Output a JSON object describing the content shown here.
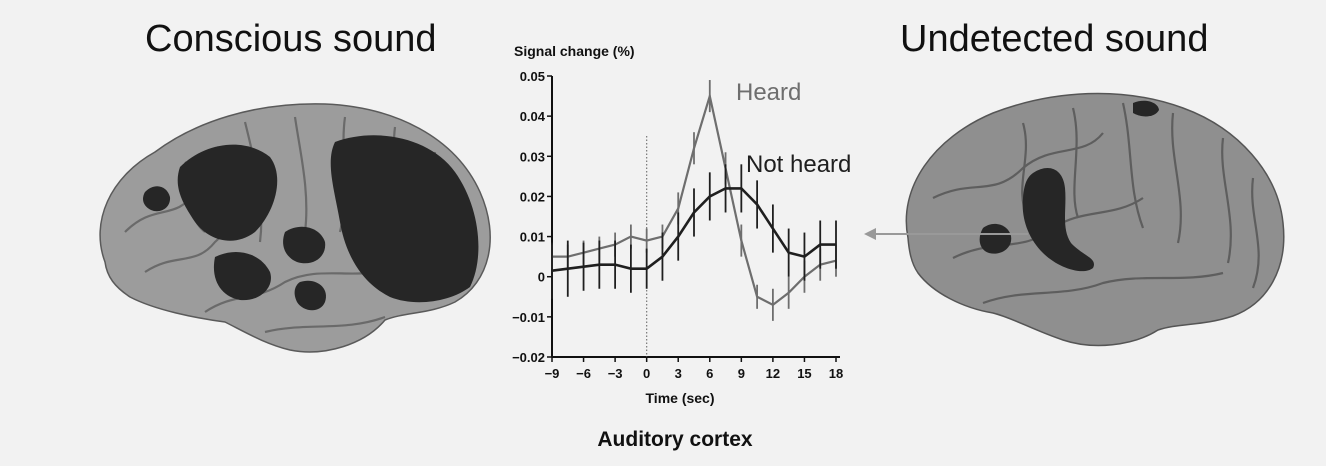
{
  "titles": {
    "left": "Conscious sound",
    "right": "Undetected sound"
  },
  "brains": {
    "left": {
      "view": "lateral-left-hemisphere",
      "activation": "widespread",
      "base_color": "#9c9c9c",
      "activation_color": "#262626"
    },
    "right": {
      "view": "lateral-right-hemisphere",
      "activation": "auditory-cortex-only",
      "base_color": "#8f8f8f",
      "activation_color": "#262626"
    }
  },
  "arrow": {
    "color": "#999999",
    "points_to": "auditory-cortex"
  },
  "chart_data": {
    "type": "line",
    "ylabel": "Signal change (%)",
    "xlabel": "Time (sec)",
    "caption": "Auditory cortex",
    "xlim": [
      -9,
      18
    ],
    "ylim": [
      -0.02,
      0.05
    ],
    "xticks": [
      -9,
      -6,
      -3,
      0,
      3,
      6,
      9,
      12,
      15,
      18
    ],
    "yticks": [
      -0.02,
      -0.01,
      0,
      0.01,
      0.02,
      0.03,
      0.04,
      0.05
    ],
    "ytick_labels": [
      "−0.02",
      "−0.01",
      "0",
      "0.01",
      "0.02",
      "0.03",
      "0.04",
      "0.05"
    ],
    "xtick_labels": [
      "−9",
      "−6",
      "−3",
      "0",
      "3",
      "6",
      "9",
      "12",
      "15",
      "18"
    ],
    "vline_x": 0,
    "series": [
      {
        "name": "Heard",
        "color": "#6e6e6e",
        "x": [
          -9,
          -7.5,
          -6,
          -4.5,
          -3,
          -1.5,
          0,
          1.5,
          3,
          4.5,
          6,
          7.5,
          9,
          10.5,
          12,
          13.5,
          15,
          16.5,
          18
        ],
        "y": [
          0.005,
          0.005,
          0.006,
          0.007,
          0.008,
          0.01,
          0.009,
          0.01,
          0.017,
          0.032,
          0.045,
          0.027,
          0.009,
          -0.005,
          -0.007,
          -0.004,
          0.0,
          0.003,
          0.004
        ],
        "err": [
          0.003,
          0.003,
          0.003,
          0.003,
          0.003,
          0.003,
          0.003,
          0.003,
          0.004,
          0.004,
          0.004,
          0.004,
          0.004,
          0.003,
          0.004,
          0.004,
          0.004,
          0.004,
          0.004
        ]
      },
      {
        "name": "Not heard",
        "color": "#1f1f1f",
        "x": [
          -9,
          -7.5,
          -6,
          -4.5,
          -3,
          -1.5,
          0,
          1.5,
          3,
          4.5,
          6,
          7.5,
          9,
          10.5,
          12,
          13.5,
          15,
          16.5,
          18
        ],
        "y": [
          0.0015,
          0.002,
          0.0025,
          0.003,
          0.003,
          0.002,
          0.002,
          0.005,
          0.01,
          0.016,
          0.02,
          0.022,
          0.022,
          0.018,
          0.012,
          0.006,
          0.005,
          0.008,
          0.008
        ],
        "err": [
          0.007,
          0.007,
          0.006,
          0.006,
          0.006,
          0.006,
          0.005,
          0.006,
          0.006,
          0.006,
          0.006,
          0.006,
          0.006,
          0.006,
          0.006,
          0.006,
          0.006,
          0.006,
          0.006
        ]
      }
    ]
  }
}
